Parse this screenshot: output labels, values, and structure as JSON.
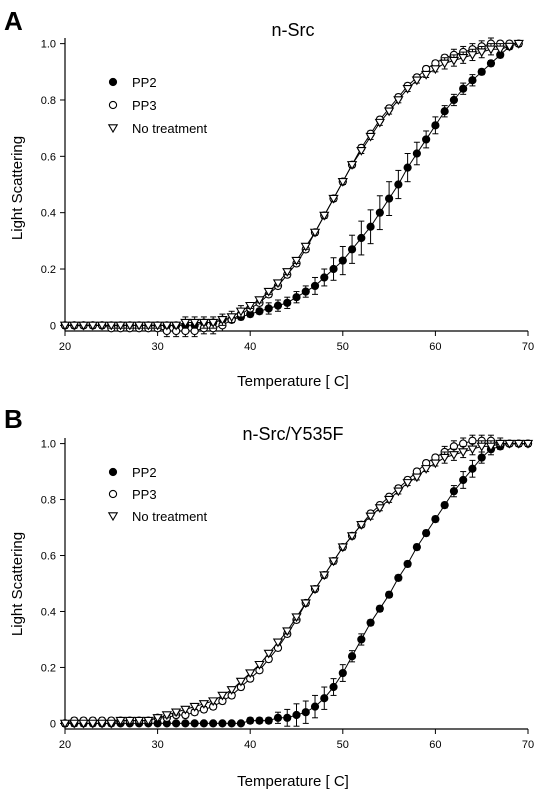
{
  "chart_data": [
    {
      "type": "scatter",
      "panel_label": "A",
      "title": "n-Src",
      "xlabel": "Temperature [ C]",
      "ylabel": "Light Scattering",
      "xlim": [
        20,
        70
      ],
      "ylim": [
        -0.02,
        1.02
      ],
      "x_ticks": [
        20,
        30,
        40,
        50,
        60,
        70
      ],
      "y_ticks": [
        0,
        0.2,
        0.4,
        0.6,
        0.8,
        1.0
      ],
      "x_tick_labels": [
        "20",
        "30",
        "40",
        "50",
        "60",
        "70"
      ],
      "y_tick_labels": [
        "0",
        "0.2",
        "0.4",
        "0.6",
        "0.8",
        "1.0"
      ],
      "grid": false,
      "legend_position": "top-left",
      "series": [
        {
          "name": "PP2",
          "marker": "filled-circle",
          "x": [
            20,
            21,
            22,
            23,
            24,
            25,
            26,
            27,
            28,
            29,
            30,
            31,
            32,
            33,
            34,
            35,
            36,
            37,
            38,
            39,
            40,
            41,
            42,
            43,
            44,
            45,
            46,
            47,
            48,
            49,
            50,
            51,
            52,
            53,
            54,
            55,
            56,
            57,
            58,
            59,
            60,
            61,
            62,
            63,
            64,
            65,
            66,
            67,
            68
          ],
          "y": [
            0.0,
            0.0,
            0.0,
            0.0,
            0.0,
            0.0,
            0.0,
            0.0,
            0.0,
            0.0,
            0.0,
            0.0,
            0.0,
            0.0,
            0.0,
            0.01,
            0.01,
            0.02,
            0.02,
            0.03,
            0.04,
            0.05,
            0.06,
            0.07,
            0.08,
            0.1,
            0.12,
            0.14,
            0.17,
            0.2,
            0.23,
            0.27,
            0.31,
            0.35,
            0.4,
            0.45,
            0.5,
            0.56,
            0.61,
            0.66,
            0.71,
            0.76,
            0.8,
            0.84,
            0.87,
            0.9,
            0.93,
            0.96,
            0.99
          ],
          "err": [
            0.0,
            0.0,
            0.0,
            0.0,
            0.0,
            0.0,
            0.0,
            0.0,
            0.0,
            0.0,
            0.0,
            0.0,
            0.0,
            0.0,
            0.01,
            0.01,
            0.01,
            0.01,
            0.01,
            0.01,
            0.01,
            0.01,
            0.02,
            0.02,
            0.02,
            0.02,
            0.02,
            0.03,
            0.03,
            0.04,
            0.05,
            0.05,
            0.06,
            0.06,
            0.06,
            0.06,
            0.05,
            0.05,
            0.04,
            0.03,
            0.03,
            0.02,
            0.02,
            0.02,
            0.02,
            0.01,
            0.01,
            0.01,
            0.01
          ]
        },
        {
          "name": "PP3",
          "marker": "open-circle",
          "x": [
            20,
            21,
            22,
            23,
            24,
            25,
            26,
            27,
            28,
            29,
            30,
            31,
            32,
            33,
            34,
            35,
            36,
            37,
            38,
            39,
            40,
            41,
            42,
            43,
            44,
            45,
            46,
            47,
            48,
            49,
            50,
            51,
            52,
            53,
            54,
            55,
            56,
            57,
            58,
            59,
            60,
            61,
            62,
            63,
            64,
            65,
            66,
            67,
            68,
            69
          ],
          "y": [
            0.0,
            0.0,
            0.0,
            0.0,
            0.0,
            -0.01,
            -0.01,
            -0.01,
            -0.01,
            -0.01,
            -0.01,
            -0.02,
            -0.02,
            -0.02,
            -0.02,
            -0.01,
            -0.01,
            0.0,
            0.02,
            0.04,
            0.06,
            0.08,
            0.11,
            0.14,
            0.18,
            0.22,
            0.27,
            0.33,
            0.39,
            0.45,
            0.51,
            0.57,
            0.63,
            0.68,
            0.73,
            0.77,
            0.81,
            0.85,
            0.88,
            0.91,
            0.93,
            0.95,
            0.96,
            0.97,
            0.98,
            0.99,
            1.0,
            1.0,
            1.0,
            1.0
          ],
          "err": [
            0.01,
            0.01,
            0.01,
            0.01,
            0.01,
            0.01,
            0.01,
            0.01,
            0.01,
            0.01,
            0.01,
            0.02,
            0.02,
            0.02,
            0.02,
            0.02,
            0.02,
            0.02,
            0.01,
            0.01,
            0.01,
            0.01,
            0.01,
            0.01,
            0.01,
            0.01,
            0.01,
            0.01,
            0.01,
            0.01,
            0.01,
            0.01,
            0.01,
            0.01,
            0.01,
            0.01,
            0.01,
            0.01,
            0.01,
            0.01,
            0.01,
            0.01,
            0.02,
            0.02,
            0.02,
            0.02,
            0.02,
            0.01,
            0.01,
            0.01
          ]
        },
        {
          "name": "No treatment",
          "marker": "open-triangle-down",
          "x": [
            20,
            21,
            22,
            23,
            24,
            25,
            26,
            27,
            28,
            29,
            30,
            31,
            32,
            33,
            34,
            35,
            36,
            37,
            38,
            39,
            40,
            41,
            42,
            43,
            44,
            45,
            46,
            47,
            48,
            49,
            50,
            51,
            52,
            53,
            54,
            55,
            56,
            57,
            58,
            59,
            60,
            61,
            62,
            63,
            64,
            65,
            66,
            67,
            68,
            69
          ],
          "y": [
            0.0,
            0.0,
            0.0,
            0.0,
            0.0,
            0.0,
            0.0,
            0.0,
            0.0,
            0.0,
            0.0,
            0.0,
            0.0,
            0.01,
            0.01,
            0.01,
            0.01,
            0.02,
            0.03,
            0.05,
            0.07,
            0.09,
            0.12,
            0.15,
            0.19,
            0.23,
            0.28,
            0.33,
            0.39,
            0.45,
            0.51,
            0.57,
            0.62,
            0.67,
            0.72,
            0.76,
            0.8,
            0.84,
            0.87,
            0.89,
            0.91,
            0.93,
            0.94,
            0.95,
            0.96,
            0.97,
            0.98,
            0.98,
            0.99,
            1.0
          ],
          "err": [
            0.01,
            0.01,
            0.01,
            0.01,
            0.01,
            0.01,
            0.01,
            0.01,
            0.01,
            0.01,
            0.01,
            0.01,
            0.01,
            0.02,
            0.02,
            0.02,
            0.02,
            0.02,
            0.02,
            0.02,
            0.01,
            0.01,
            0.01,
            0.01,
            0.01,
            0.01,
            0.01,
            0.01,
            0.01,
            0.01,
            0.01,
            0.01,
            0.01,
            0.01,
            0.01,
            0.01,
            0.01,
            0.01,
            0.01,
            0.01,
            0.01,
            0.02,
            0.02,
            0.02,
            0.02,
            0.02,
            0.02,
            0.02,
            0.01,
            0.01
          ]
        }
      ]
    },
    {
      "type": "scatter",
      "panel_label": "B",
      "title": "n-Src/Y535F",
      "xlabel": "Temperature [ C]",
      "ylabel": "Light Scattering",
      "xlim": [
        20,
        70
      ],
      "ylim": [
        -0.02,
        1.02
      ],
      "x_ticks": [
        20,
        30,
        40,
        50,
        60,
        70
      ],
      "y_ticks": [
        0,
        0.2,
        0.4,
        0.6,
        0.8,
        1.0
      ],
      "x_tick_labels": [
        "20",
        "30",
        "40",
        "50",
        "60",
        "70"
      ],
      "y_tick_labels": [
        "0",
        "0.2",
        "0.4",
        "0.6",
        "0.8",
        "1.0"
      ],
      "grid": false,
      "legend_position": "top-left",
      "series": [
        {
          "name": "PP2",
          "marker": "filled-circle",
          "x": [
            20,
            21,
            22,
            23,
            24,
            25,
            26,
            27,
            28,
            29,
            30,
            31,
            32,
            33,
            34,
            35,
            36,
            37,
            38,
            39,
            40,
            41,
            42,
            43,
            44,
            45,
            46,
            47,
            48,
            49,
            50,
            51,
            52,
            53,
            54,
            55,
            56,
            57,
            58,
            59,
            60,
            61,
            62,
            63,
            64,
            65,
            66,
            67,
            68,
            69,
            70
          ],
          "y": [
            0.0,
            0.0,
            0.0,
            0.0,
            0.0,
            0.0,
            0.0,
            0.0,
            0.0,
            0.0,
            0.0,
            0.0,
            0.0,
            0.0,
            0.0,
            0.0,
            0.0,
            0.0,
            0.0,
            0.0,
            0.01,
            0.01,
            0.01,
            0.02,
            0.02,
            0.03,
            0.04,
            0.06,
            0.09,
            0.13,
            0.18,
            0.24,
            0.3,
            0.36,
            0.41,
            0.46,
            0.52,
            0.57,
            0.63,
            0.68,
            0.73,
            0.78,
            0.83,
            0.87,
            0.91,
            0.95,
            0.98,
            0.99,
            1.0,
            1.0,
            1.0
          ],
          "err": [
            0.01,
            0.01,
            0.01,
            0.0,
            0.0,
            0.0,
            0.0,
            0.0,
            0.0,
            0.0,
            0.0,
            0.0,
            0.0,
            0.0,
            0.0,
            0.0,
            0.0,
            0.0,
            0.0,
            0.0,
            0.01,
            0.01,
            0.01,
            0.02,
            0.03,
            0.04,
            0.04,
            0.04,
            0.04,
            0.03,
            0.03,
            0.02,
            0.02,
            0.01,
            0.01,
            0.01,
            0.01,
            0.01,
            0.01,
            0.01,
            0.01,
            0.01,
            0.02,
            0.03,
            0.03,
            0.02,
            0.02,
            0.01,
            0.01,
            0.01,
            0.01
          ]
        },
        {
          "name": "PP3",
          "marker": "open-circle",
          "x": [
            20,
            21,
            22,
            23,
            24,
            25,
            26,
            27,
            28,
            29,
            30,
            31,
            32,
            33,
            34,
            35,
            36,
            37,
            38,
            39,
            40,
            41,
            42,
            43,
            44,
            45,
            46,
            47,
            48,
            49,
            50,
            51,
            52,
            53,
            54,
            55,
            56,
            57,
            58,
            59,
            60,
            61,
            62,
            63,
            64,
            65,
            66,
            67,
            68,
            69,
            70
          ],
          "y": [
            0.0,
            0.01,
            0.01,
            0.01,
            0.01,
            0.01,
            0.01,
            0.01,
            0.01,
            0.01,
            0.02,
            0.02,
            0.03,
            0.03,
            0.04,
            0.05,
            0.06,
            0.08,
            0.1,
            0.13,
            0.16,
            0.19,
            0.23,
            0.27,
            0.32,
            0.37,
            0.43,
            0.48,
            0.53,
            0.58,
            0.63,
            0.67,
            0.71,
            0.75,
            0.78,
            0.81,
            0.84,
            0.87,
            0.9,
            0.93,
            0.95,
            0.97,
            0.99,
            1.0,
            1.01,
            1.01,
            1.01,
            1.0,
            1.0,
            1.0,
            1.0
          ],
          "err": [
            0.01,
            0.01,
            0.01,
            0.01,
            0.01,
            0.01,
            0.01,
            0.01,
            0.01,
            0.01,
            0.01,
            0.01,
            0.01,
            0.01,
            0.01,
            0.01,
            0.01,
            0.01,
            0.01,
            0.01,
            0.01,
            0.01,
            0.01,
            0.01,
            0.01,
            0.01,
            0.01,
            0.01,
            0.01,
            0.01,
            0.01,
            0.01,
            0.01,
            0.01,
            0.01,
            0.01,
            0.01,
            0.01,
            0.01,
            0.01,
            0.01,
            0.02,
            0.02,
            0.02,
            0.02,
            0.02,
            0.02,
            0.01,
            0.01,
            0.01,
            0.01
          ]
        },
        {
          "name": "No treatment",
          "marker": "open-triangle-down",
          "x": [
            20,
            21,
            22,
            23,
            24,
            25,
            26,
            27,
            28,
            29,
            30,
            31,
            32,
            33,
            34,
            35,
            36,
            37,
            38,
            39,
            40,
            41,
            42,
            43,
            44,
            45,
            46,
            47,
            48,
            49,
            50,
            51,
            52,
            53,
            54,
            55,
            56,
            57,
            58,
            59,
            60,
            61,
            62,
            63,
            64,
            65,
            66,
            67,
            68,
            69,
            70
          ],
          "y": [
            0.0,
            0.0,
            0.0,
            0.0,
            0.0,
            0.0,
            0.01,
            0.01,
            0.01,
            0.01,
            0.02,
            0.03,
            0.04,
            0.05,
            0.06,
            0.07,
            0.08,
            0.1,
            0.12,
            0.15,
            0.18,
            0.21,
            0.25,
            0.29,
            0.33,
            0.38,
            0.43,
            0.48,
            0.53,
            0.58,
            0.63,
            0.67,
            0.71,
            0.74,
            0.77,
            0.8,
            0.83,
            0.86,
            0.88,
            0.91,
            0.93,
            0.95,
            0.96,
            0.97,
            0.98,
            0.99,
            0.99,
            1.0,
            1.0,
            1.0,
            1.0
          ],
          "err": [
            0.01,
            0.01,
            0.01,
            0.01,
            0.01,
            0.01,
            0.01,
            0.01,
            0.01,
            0.01,
            0.01,
            0.01,
            0.01,
            0.01,
            0.01,
            0.01,
            0.01,
            0.01,
            0.01,
            0.01,
            0.01,
            0.01,
            0.01,
            0.01,
            0.01,
            0.01,
            0.01,
            0.01,
            0.01,
            0.01,
            0.01,
            0.01,
            0.01,
            0.01,
            0.01,
            0.01,
            0.01,
            0.01,
            0.01,
            0.01,
            0.01,
            0.02,
            0.02,
            0.02,
            0.02,
            0.02,
            0.02,
            0.02,
            0.01,
            0.01,
            0.01
          ]
        }
      ]
    }
  ]
}
